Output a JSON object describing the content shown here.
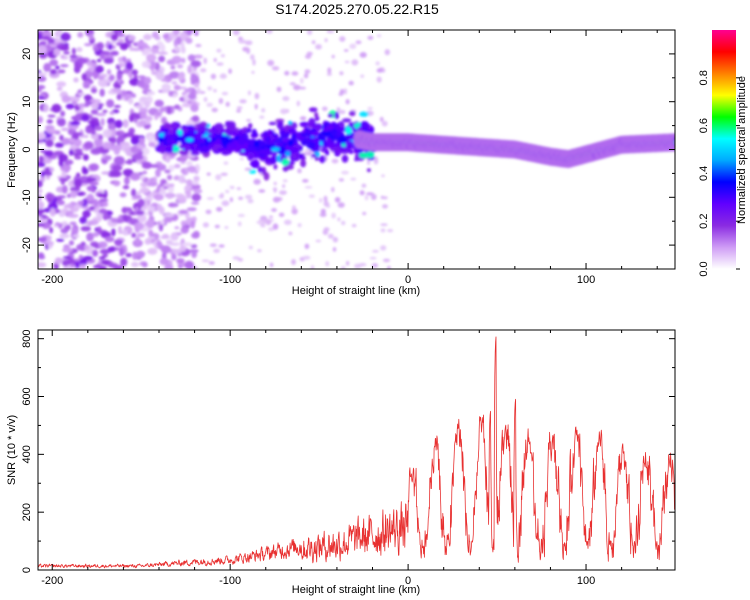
{
  "title": "S174.2025.270.05.22.R15",
  "chart_data": [
    {
      "type": "heatmap",
      "xlabel": "Height of straight line (km)",
      "ylabel": "Frequency (Hz)",
      "xlim": [
        -208,
        150
      ],
      "ylim": [
        -25,
        25
      ],
      "xticks": [
        -200,
        -100,
        0,
        100
      ],
      "yticks": [
        -20,
        -10,
        0,
        10,
        20
      ],
      "ridge": {
        "x": [
          -140,
          -120,
          -100,
          -80,
          -60,
          -40,
          -20,
          0,
          20,
          40,
          60,
          80,
          90,
          100,
          120,
          150
        ],
        "y": [
          2,
          2,
          2,
          0,
          2,
          3,
          1.5,
          1.5,
          1,
          0.5,
          0,
          -1.5,
          -2,
          -1,
          1,
          1.5
        ]
      },
      "colorbar": {
        "label": "Normalized spectral amplitude",
        "range": [
          0,
          1
        ],
        "ticks": [
          "0.0",
          "0.2",
          "0.4",
          "0.6",
          "0.8"
        ],
        "colors": [
          "#ffffff",
          "#cf9cf5",
          "#8a2be2",
          "#6000ff",
          "#0000ff",
          "#00aaff",
          "#00ffff",
          "#00ff00",
          "#ffff00",
          "#ff8000",
          "#ff0000",
          "#ff0090"
        ]
      }
    },
    {
      "type": "line",
      "xlabel": "Height of straight line (km)",
      "ylabel": "SNR (10 * v/v)",
      "xlim": [
        -208,
        150
      ],
      "ylim": [
        0,
        830
      ],
      "xticks": [
        -200,
        -100,
        0,
        100
      ],
      "yticks": [
        0,
        200,
        400,
        600,
        800
      ],
      "color": "#e83030",
      "envelope": {
        "x": [
          -208,
          -150,
          -120,
          -100,
          -80,
          -60,
          -40,
          -20,
          0,
          15,
          30,
          50,
          70,
          100,
          130,
          150
        ],
        "y": [
          20,
          20,
          40,
          50,
          80,
          120,
          150,
          200,
          250,
          330,
          380,
          370,
          360,
          340,
          300,
          300
        ]
      }
    }
  ]
}
